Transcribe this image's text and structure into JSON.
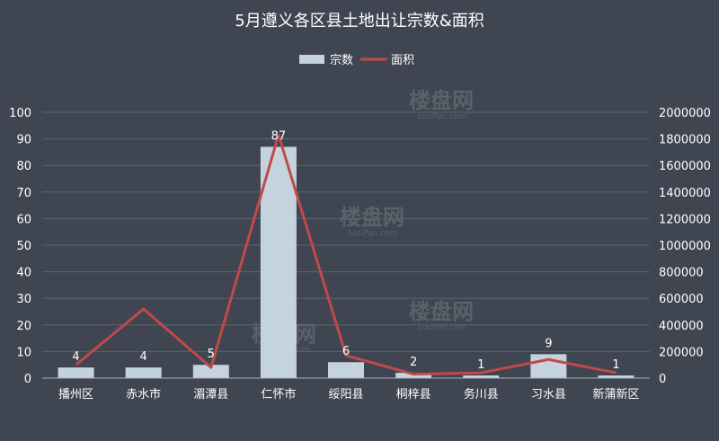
{
  "chart_data": {
    "type": "bar",
    "title": "5月遵义各区县土地出让宗数&面积",
    "categories": [
      "播州区",
      "赤水市",
      "湄潭县",
      "仁怀市",
      "绥阳县",
      "桐梓县",
      "务川县",
      "习水县",
      "新蒲新区"
    ],
    "series": [
      {
        "name": "宗数",
        "type": "bar",
        "axis": "left",
        "values": [
          4,
          4,
          5,
          87,
          6,
          2,
          1,
          9,
          1
        ],
        "color": "#c5d3dc"
      },
      {
        "name": "面积",
        "type": "line",
        "axis": "right",
        "values": [
          100000,
          520000,
          80000,
          1830000,
          170000,
          30000,
          40000,
          140000,
          40000
        ],
        "color": "#c0494b"
      }
    ],
    "y_left": {
      "min": 0,
      "max": 100,
      "ticks": [
        0,
        10,
        20,
        30,
        40,
        50,
        60,
        70,
        80,
        90,
        100
      ]
    },
    "y_right": {
      "min": 0,
      "max": 2000000,
      "ticks": [
        0,
        200000,
        400000,
        600000,
        800000,
        1000000,
        1200000,
        1400000,
        1600000,
        1800000,
        2000000
      ]
    },
    "legend_position": "top-center",
    "grid": true
  },
  "watermark": {
    "text": "楼盘网",
    "sub": "LouPan.com"
  }
}
